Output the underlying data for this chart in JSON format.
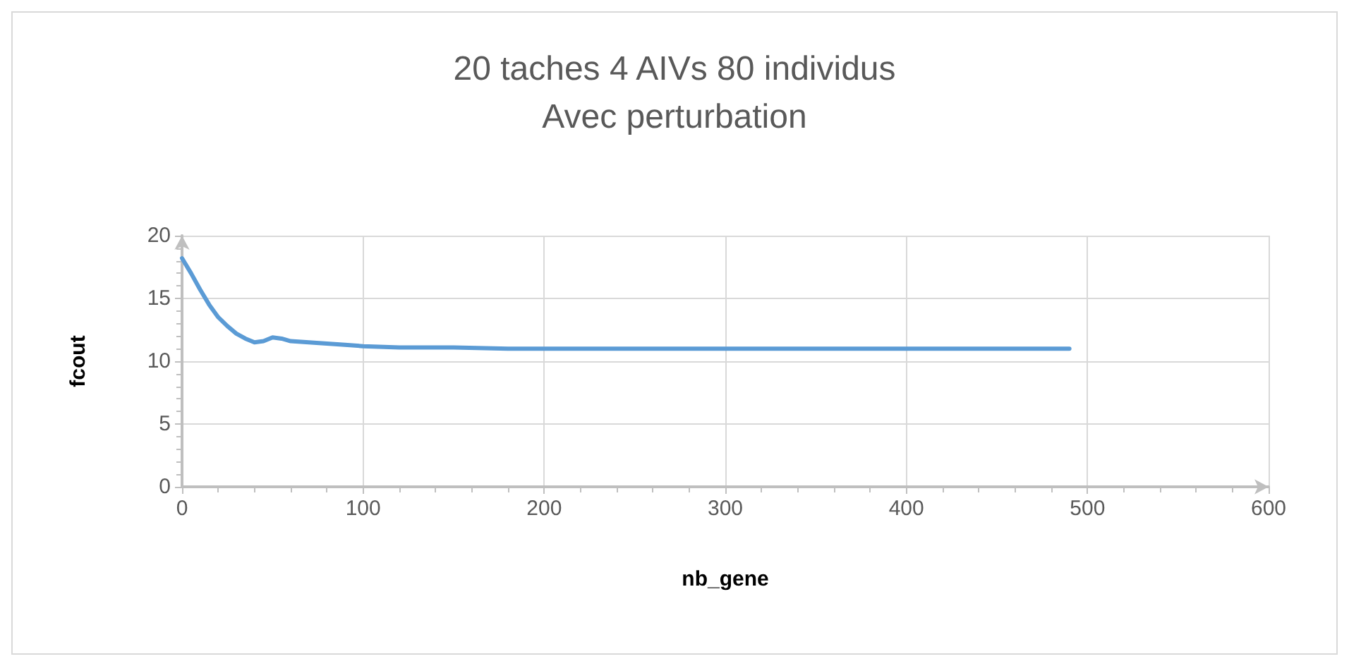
{
  "chart_data": {
    "type": "line",
    "title": "20 taches 4 AIVs 80 individus\nAvec perturbation",
    "xlabel": "nb_gene",
    "ylabel": "fcout",
    "x": [
      0,
      5,
      10,
      15,
      20,
      25,
      30,
      35,
      40,
      45,
      50,
      55,
      60,
      70,
      80,
      90,
      100,
      120,
      150,
      180,
      200,
      250,
      300,
      350,
      400,
      450,
      490
    ],
    "series": [
      {
        "color": "#5b9bd5",
        "values": [
          18.2,
          17,
          15.7,
          14.5,
          13.5,
          12.8,
          12.2,
          11.8,
          11.5,
          11.6,
          11.9,
          11.8,
          11.6,
          11.5,
          11.4,
          11.3,
          11.2,
          11.1,
          11.1,
          11,
          11,
          11,
          11,
          11,
          11,
          11,
          11
        ]
      }
    ],
    "xlim": [
      0,
      600
    ],
    "xticks": [
      0,
      100,
      200,
      300,
      400,
      500,
      600
    ],
    "ylim": [
      0,
      20
    ],
    "yticks": [
      0,
      5,
      10,
      15,
      20
    ],
    "grid": true,
    "marker": "none",
    "line_style": "solid"
  }
}
